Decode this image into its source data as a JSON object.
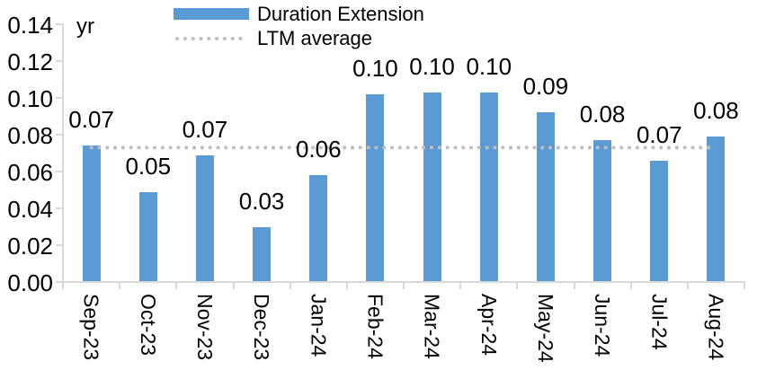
{
  "chart_data": {
    "type": "bar",
    "title": "",
    "unit_label": "yr",
    "categories": [
      "Sep-23",
      "Oct-23",
      "Nov-23",
      "Dec-23",
      "Jan-24",
      "Feb-24",
      "Mar-24",
      "Apr-24",
      "May-24",
      "Jun-24",
      "Jul-24",
      "Aug-24"
    ],
    "series": [
      {
        "name": "Duration Extension",
        "color": "#5b9bd5",
        "values": [
          0.074,
          0.049,
          0.069,
          0.03,
          0.058,
          0.102,
          0.103,
          0.103,
          0.092,
          0.077,
          0.066,
          0.079
        ],
        "data_labels": [
          "0.07",
          "0.05",
          "0.07",
          "0.03",
          "0.06",
          "0.10",
          "0.10",
          "0.10",
          "0.09",
          "0.08",
          "0.07",
          "0.08"
        ]
      }
    ],
    "average_line": {
      "name": "LTM average",
      "value": 0.073,
      "color": "#bfbfbf",
      "style": "dotted-round"
    },
    "ylim": [
      0,
      0.14
    ],
    "ytick_step": 0.02,
    "ytick_labels": [
      "0.00",
      "0.02",
      "0.04",
      "0.06",
      "0.08",
      "0.10",
      "0.12",
      "0.14"
    ],
    "grid": false,
    "legend_position": "top-center",
    "axis_color": "#d9d9d9",
    "text_color": "#000000"
  }
}
